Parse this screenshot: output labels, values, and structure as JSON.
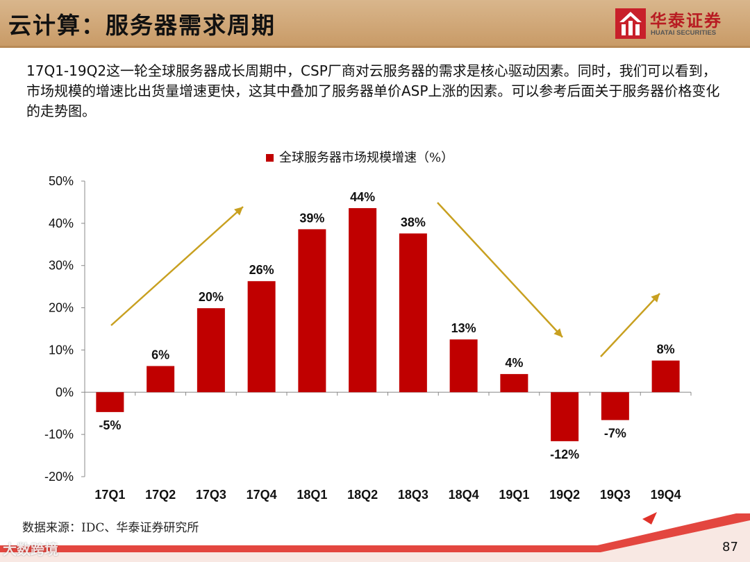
{
  "header": {
    "title": "云计算：服务器需求周期",
    "logo_cn": "华泰证券",
    "logo_en": "HUATAI SECURITIES",
    "accent": "#b81c22"
  },
  "intro": {
    "text": "17Q1-19Q2这一轮全球服务器成长周期中，CSP厂商对云服务器的需求是核心驱动因素。同时，我们可以看到，市场规模的增速比出货量增速更快，这其中叠加了服务器单价ASP上涨的因素。可以参考后面关于服务器价格变化的走势图。"
  },
  "chart_data": {
    "type": "bar",
    "categories": [
      "17Q1",
      "17Q2",
      "17Q3",
      "17Q4",
      "18Q1",
      "18Q2",
      "18Q3",
      "18Q4",
      "19Q1",
      "19Q2",
      "19Q3",
      "19Q4"
    ],
    "series": [
      {
        "name": "全球服务器市场规模增速（%）",
        "values": [
          -4.7,
          6.2,
          19.9,
          26.3,
          38.6,
          43.6,
          37.6,
          12.5,
          4.3,
          -11.6,
          -6.6,
          7.5
        ],
        "labels": [
          "-5%",
          "6%",
          "20%",
          "26%",
          "39%",
          "44%",
          "38%",
          "13%",
          "4%",
          "-12%",
          "-7%",
          "8%"
        ],
        "color": "#c00000"
      }
    ],
    "y_ticks": [
      "50%",
      "40%",
      "30%",
      "20%",
      "10%",
      "0%",
      "-10%",
      "-20%"
    ],
    "ylim": [
      -20,
      50
    ],
    "ylabel": "",
    "xlabel": "",
    "title": "",
    "grid": false,
    "legend": "top-center",
    "trend_arrow_color": "#c8a020"
  },
  "footer": {
    "source": "数据来源：IDC、华泰证券研究所",
    "page_number": "87",
    "watermark": "大数跨境"
  }
}
